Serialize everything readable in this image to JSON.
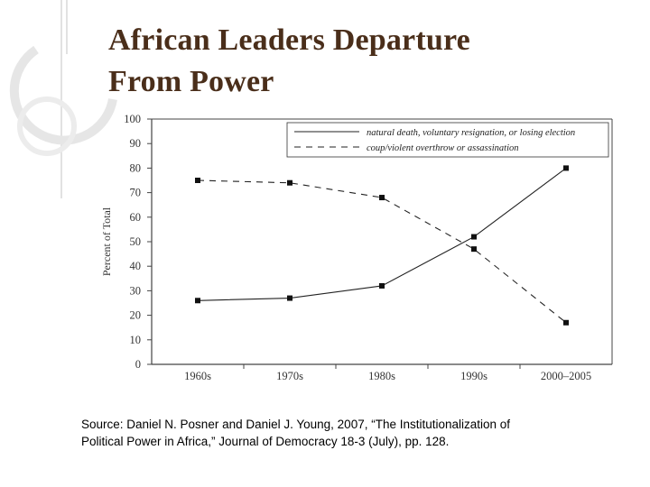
{
  "slide": {
    "title_line1": "African Leaders Departure",
    "title_line2": "From Power",
    "source_line1": "Source: Daniel N. Posner and Daniel J. Young, 2007, “The Institutionalization of",
    "source_line2": "Political Power in Africa,” Journal of Democracy 18-3 (July), pp. 128."
  },
  "colors": {
    "title": "#4a2e1a",
    "decoration": "#e2e2e2",
    "series": "#222222"
  },
  "chart_data": {
    "type": "line",
    "title": "",
    "xlabel": "",
    "ylabel": "Percent of Total",
    "categories": [
      "1960s",
      "1970s",
      "1980s",
      "1990s",
      "2000–2005"
    ],
    "ylim": [
      0,
      100
    ],
    "yticks": [
      "0",
      "10",
      "20",
      "30",
      "40",
      "50",
      "60",
      "70",
      "80",
      "90",
      "100"
    ],
    "legend_position": "top-right",
    "grid": false,
    "series": [
      {
        "name": "natural death, voluntary resignation, or losing election",
        "style": "solid",
        "values": [
          26,
          27,
          32,
          52,
          80
        ]
      },
      {
        "name": "coup/violent overthrow or assassination",
        "style": "dashed",
        "values": [
          75,
          74,
          68,
          47,
          17
        ]
      }
    ]
  }
}
